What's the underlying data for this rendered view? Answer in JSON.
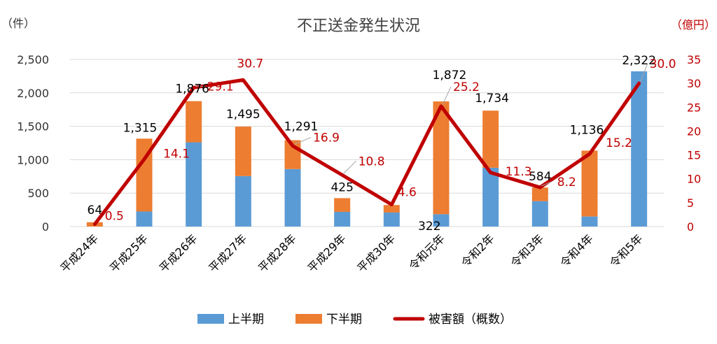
{
  "chart_data": {
    "type": "bar",
    "title": "不正送金発生状況",
    "left_unit": "（件）",
    "right_unit": "（億円）",
    "categories": [
      "平成24年",
      "平成25年",
      "平成26年",
      "平成27年",
      "平成28年",
      "平成29年",
      "平成30年",
      "令和元年",
      "令和2年",
      "令和3年",
      "令和4年",
      "令和5年"
    ],
    "series": [
      {
        "name": "上半期",
        "axis": "left",
        "type": "bar",
        "stack": "count",
        "color": "#5b9bd5",
        "values": [
          0,
          225,
          1260,
          755,
          860,
          220,
          210,
          185,
          880,
          380,
          150,
          2322
        ]
      },
      {
        "name": "下半期",
        "axis": "left",
        "type": "bar",
        "stack": "count",
        "color": "#ed7d31",
        "values": [
          64,
          1090,
          616,
          740,
          431,
          205,
          112,
          1687,
          854,
          204,
          986,
          0
        ]
      },
      {
        "name": "被害額（概数）",
        "axis": "right",
        "type": "line",
        "color": "#c00000",
        "values": [
          0.5,
          14.1,
          29.1,
          30.7,
          16.9,
          10.8,
          4.6,
          25.2,
          11.3,
          8.2,
          15.2,
          30.0
        ]
      }
    ],
    "count_labels": [
      "64",
      "1,315",
      "1,876",
      "1,495",
      "1,291",
      "425",
      "322",
      "1,872",
      "1,734",
      "584",
      "1,136",
      "2,322"
    ],
    "amount_labels": [
      "0.5",
      "14.1",
      "29.1",
      "30.7",
      "16.9",
      "10.8",
      "4.6",
      "25.2",
      "11.3",
      "8.2",
      "15.2",
      "30.0"
    ],
    "left_axis": {
      "min": 0,
      "max": 2500,
      "ticks": [
        "0",
        "500",
        "1,000",
        "1,500",
        "2,000",
        "2,500"
      ]
    },
    "right_axis": {
      "min": 0,
      "max": 35,
      "ticks": [
        "0",
        "5",
        "10",
        "15",
        "20",
        "25",
        "30",
        "35"
      ]
    },
    "grid": true,
    "legend_position": "bottom"
  }
}
